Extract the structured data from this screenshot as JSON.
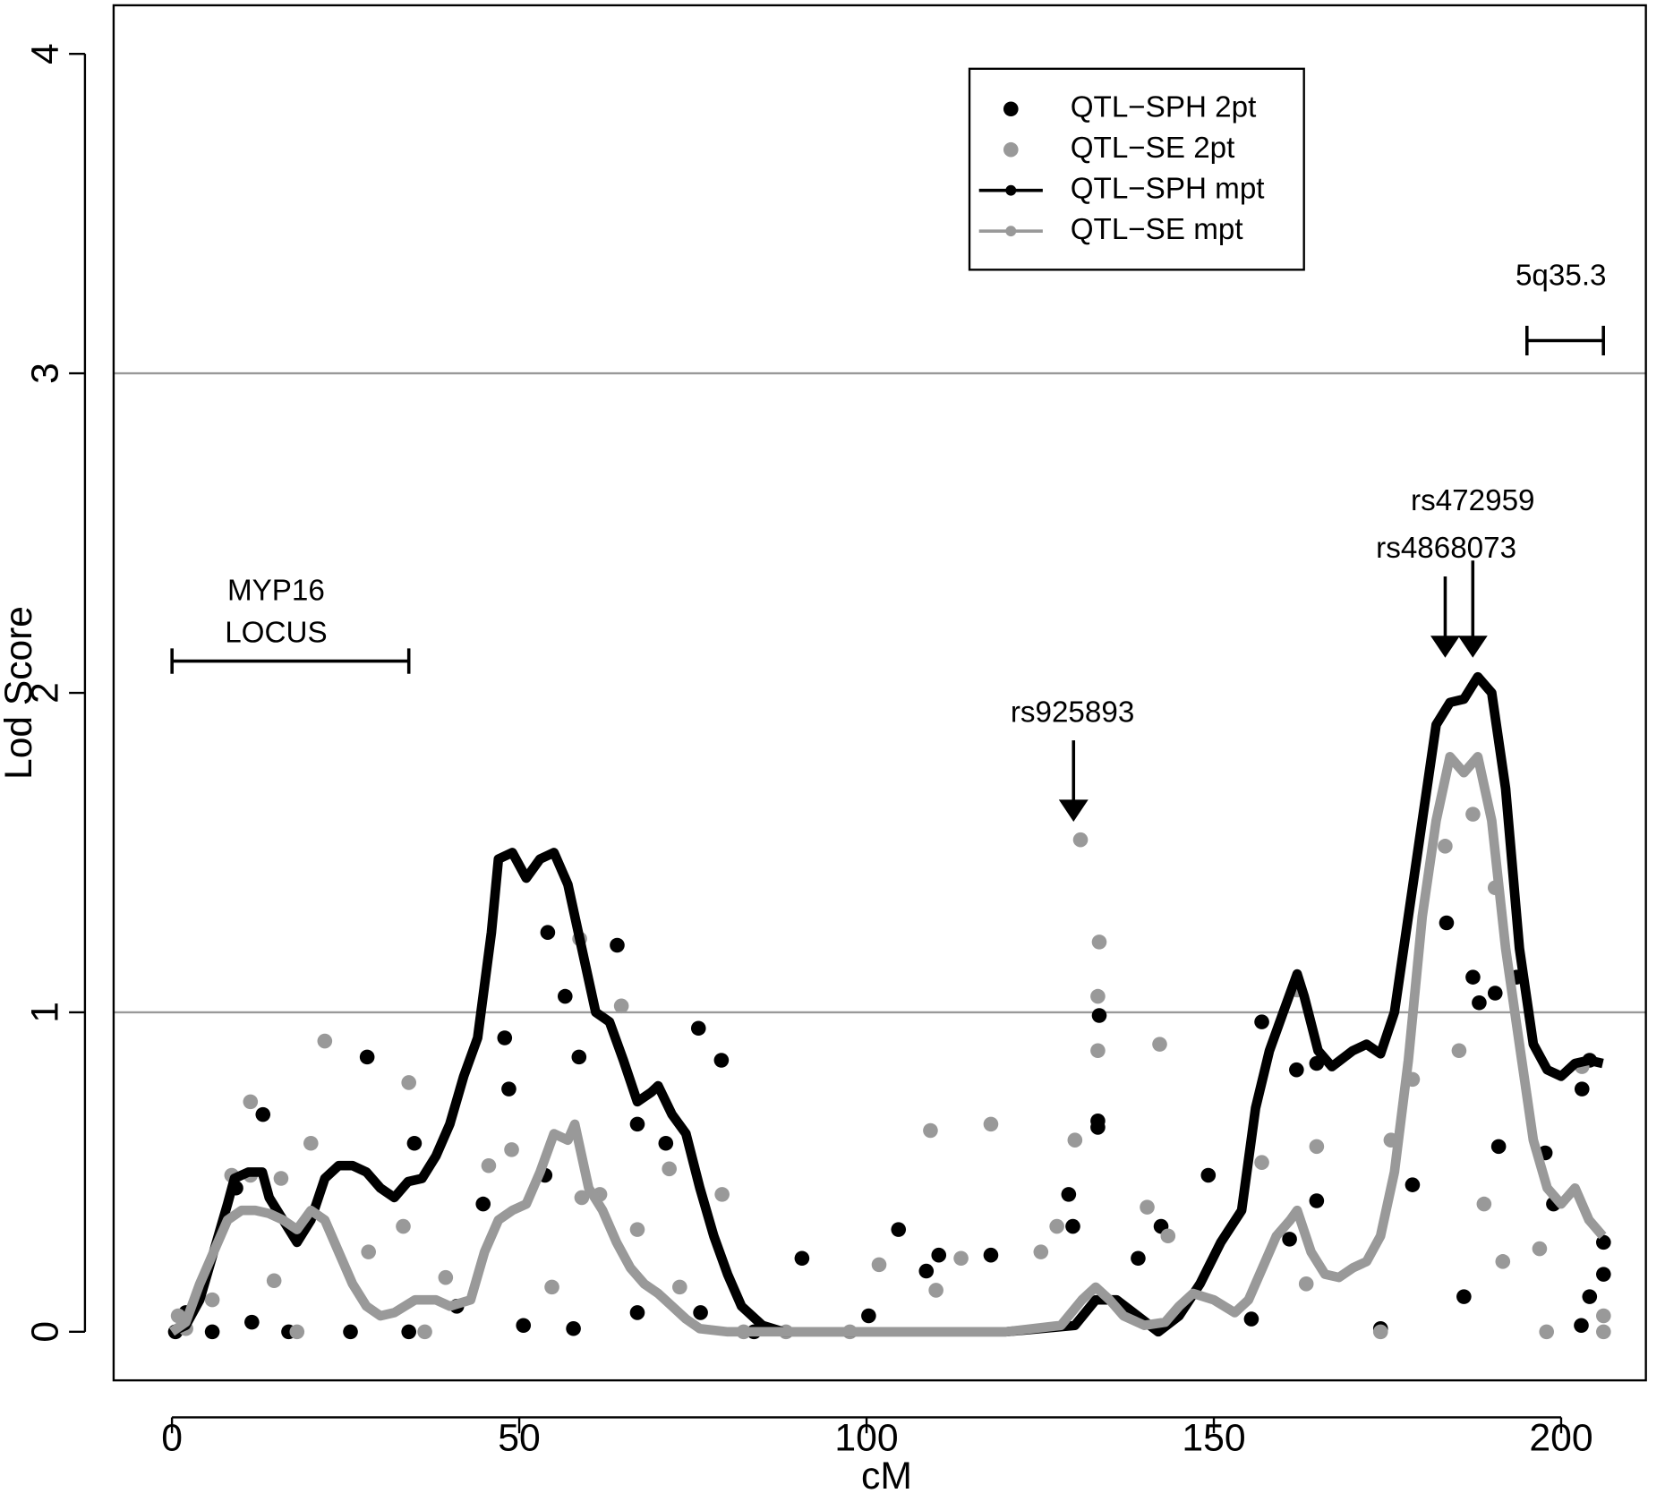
{
  "chart_data": {
    "type": "line_scatter",
    "xlabel": "cM",
    "ylabel": "Lod Score",
    "xlim": [
      -8.4,
      212.2
    ],
    "ylim": [
      -0.152,
      4.152
    ],
    "xticks": [
      0,
      50,
      100,
      150,
      200
    ],
    "yticks": [
      0,
      1,
      2,
      3,
      4
    ],
    "hlines": [
      1,
      3
    ],
    "hline_color": "#999999",
    "legend": "top-right",
    "annotations": [
      "MYP16",
      "LOCUS",
      "rs925893",
      "rs4868073",
      "rs472959",
      "5q35.3"
    ],
    "series": [
      {
        "name": "QTL−SPH 2pt",
        "kind": "points",
        "color": "#000000",
        "x": [
          9.2,
          13.1,
          28.1,
          34.9,
          47.9,
          48.5,
          54.1,
          56.6,
          58.6,
          64.1,
          75.8,
          79.1,
          67,
          71.1,
          44.8,
          53.7,
          129.1,
          133.3,
          133.3,
          133.5,
          149.2,
          156.9,
          161.9,
          164.8,
          183.5,
          187.3,
          188.2,
          190.5,
          193.6,
          191,
          197.7,
          198.9,
          203,
          204.1,
          206.1,
          206.1,
          204.1,
          0.5,
          2,
          5.8,
          11.5,
          16.8,
          25.7,
          34.1,
          41,
          50.6,
          57.8,
          67,
          76.1,
          83.8,
          90.7,
          100.3,
          104.6,
          108.6,
          110.4,
          117.9,
          129.7,
          139.1,
          142.4,
          155.4,
          160.9,
          164.8,
          174,
          178.6,
          186,
          202.9
        ],
        "values": [
          0.45,
          0.68,
          0.86,
          0.59,
          0.92,
          0.76,
          1.25,
          1.05,
          0.86,
          1.21,
          0.95,
          0.85,
          0.65,
          0.59,
          0.4,
          0.49,
          0.43,
          0.66,
          0.64,
          0.99,
          0.49,
          0.97,
          0.82,
          0.84,
          1.28,
          1.11,
          1.03,
          1.06,
          1.11,
          0.58,
          0.56,
          0.4,
          0.76,
          0.85,
          0.28,
          0.18,
          0.11,
          0,
          0.06,
          0,
          0.03,
          0,
          0,
          0,
          0.08,
          0.02,
          0.01,
          0.06,
          0.06,
          0,
          0.23,
          0.05,
          0.32,
          0.19,
          0.24,
          0.24,
          0.33,
          0.23,
          0.33,
          0.04,
          0.29,
          0.41,
          0.01,
          0.46,
          0.11,
          0.02
        ]
      },
      {
        "name": "QTL−SE 2pt",
        "kind": "points",
        "color": "#999999",
        "x": [
          0.9,
          11.3,
          11.3,
          15.7,
          22,
          20,
          34.1,
          48.9,
          45.6,
          58.7,
          64.7,
          59,
          71.6,
          79.2,
          109.2,
          117.9,
          130.8,
          130,
          133.5,
          133.3,
          133.3,
          142.2,
          162,
          156.9,
          164.8,
          178.6,
          175.5,
          183.3,
          187.3,
          190.5,
          185.3,
          188.9,
          196.9,
          203,
          191.6,
          163.3,
          143.4,
          140.4,
          127.4,
          125.1,
          113.6,
          110,
          101.8,
          97.6,
          88.4,
          73.1,
          67,
          61.6,
          54.7,
          39.4,
          33.3,
          28.3,
          14.7,
          8.6,
          2,
          5.8,
          18,
          36.4,
          82.3,
          174,
          197.9,
          206.1,
          206.1
        ],
        "values": [
          0.05,
          0.72,
          0.49,
          0.48,
          0.91,
          0.59,
          0.78,
          0.57,
          0.52,
          1.23,
          1.02,
          0.42,
          0.51,
          0.43,
          0.63,
          0.65,
          1.54,
          0.6,
          1.22,
          1.05,
          0.88,
          0.9,
          1.07,
          0.53,
          0.58,
          0.79,
          0.6,
          1.52,
          1.62,
          1.39,
          0.88,
          0.4,
          0.26,
          0.83,
          0.22,
          0.15,
          0.3,
          0.39,
          0.33,
          0.25,
          0.23,
          0.13,
          0.21,
          0,
          0,
          0.14,
          0.32,
          0.43,
          0.14,
          0.17,
          0.33,
          0.25,
          0.16,
          0.49,
          0.01,
          0.1,
          0,
          0,
          0,
          0,
          0,
          0,
          0.05
        ]
      },
      {
        "name": "QTL−SPH mpt",
        "kind": "line",
        "color": "#000000",
        "x": [
          0,
          2,
          4,
          6,
          8,
          9,
          11,
          13,
          14,
          16,
          18,
          20,
          22,
          24,
          26,
          28,
          30,
          32,
          34,
          36,
          38,
          40,
          42,
          44,
          46,
          47,
          49,
          51,
          53,
          55,
          57,
          59,
          61,
          63,
          65,
          67,
          69,
          70,
          72,
          74,
          76,
          78,
          80,
          82,
          85,
          88,
          100,
          110,
          120,
          130,
          133,
          136,
          139,
          142,
          145,
          148,
          151,
          154,
          156,
          158,
          160,
          162,
          163,
          165,
          167,
          170,
          172,
          174,
          176,
          178,
          180,
          182,
          184,
          186,
          188,
          190,
          192,
          194,
          196,
          198,
          200,
          202,
          204,
          206
        ],
        "values": [
          0,
          0.02,
          0.1,
          0.25,
          0.4,
          0.48,
          0.5,
          0.5,
          0.42,
          0.35,
          0.28,
          0.35,
          0.48,
          0.52,
          0.52,
          0.5,
          0.45,
          0.42,
          0.47,
          0.48,
          0.55,
          0.65,
          0.8,
          0.92,
          1.25,
          1.48,
          1.5,
          1.42,
          1.48,
          1.5,
          1.4,
          1.2,
          1.0,
          0.97,
          0.85,
          0.72,
          0.75,
          0.77,
          0.68,
          0.62,
          0.45,
          0.3,
          0.18,
          0.08,
          0.02,
          0,
          0,
          0,
          0,
          0.02,
          0.1,
          0.1,
          0.05,
          0,
          0.05,
          0.15,
          0.28,
          0.38,
          0.7,
          0.88,
          1.0,
          1.12,
          1.05,
          0.88,
          0.83,
          0.88,
          0.9,
          0.87,
          1.0,
          1.3,
          1.6,
          1.9,
          1.97,
          1.98,
          2.05,
          2.0,
          1.7,
          1.2,
          0.9,
          0.82,
          0.8,
          0.84,
          0.85,
          0.84
        ]
      },
      {
        "name": "QTL−SE mpt",
        "kind": "line",
        "color": "#999999",
        "x": [
          0,
          2,
          4,
          6,
          8,
          10,
          12,
          14,
          16,
          18,
          20,
          22,
          24,
          26,
          28,
          30,
          32,
          35,
          38,
          40,
          43,
          45,
          47,
          49,
          51,
          53,
          55,
          57,
          58,
          60,
          62,
          64,
          66,
          68,
          70,
          72,
          74,
          76,
          80,
          100,
          120,
          128,
          131,
          133,
          135,
          137,
          140,
          143,
          145,
          147,
          150,
          153,
          155,
          157,
          159,
          161,
          162,
          164,
          166,
          168,
          170,
          172,
          174,
          176,
          178,
          180,
          182,
          184,
          186,
          188,
          190,
          192,
          194,
          196,
          198,
          200,
          202,
          204,
          206
        ],
        "values": [
          0,
          0.03,
          0.15,
          0.25,
          0.35,
          0.38,
          0.38,
          0.37,
          0.35,
          0.32,
          0.38,
          0.35,
          0.25,
          0.15,
          0.08,
          0.05,
          0.06,
          0.1,
          0.1,
          0.08,
          0.1,
          0.25,
          0.35,
          0.38,
          0.4,
          0.5,
          0.62,
          0.6,
          0.65,
          0.45,
          0.38,
          0.28,
          0.2,
          0.15,
          0.12,
          0.08,
          0.04,
          0.01,
          0,
          0,
          0,
          0.02,
          0.1,
          0.14,
          0.1,
          0.05,
          0.02,
          0.03,
          0.08,
          0.12,
          0.1,
          0.06,
          0.1,
          0.2,
          0.3,
          0.35,
          0.38,
          0.25,
          0.18,
          0.17,
          0.2,
          0.22,
          0.3,
          0.5,
          0.85,
          1.3,
          1.6,
          1.8,
          1.75,
          1.8,
          1.6,
          1.2,
          0.9,
          0.6,
          0.45,
          0.4,
          0.45,
          0.35,
          0.3
        ]
      }
    ]
  }
}
